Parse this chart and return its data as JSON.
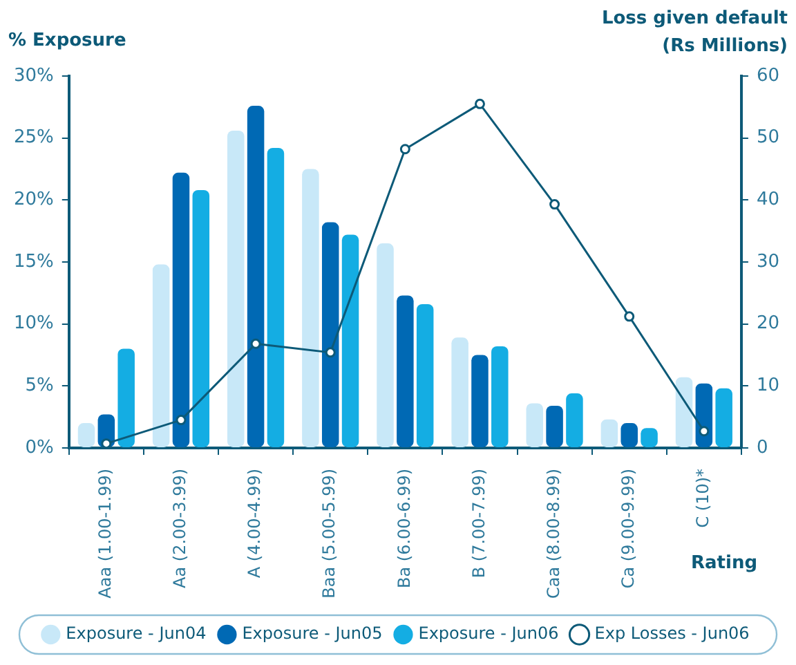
{
  "chart_data": {
    "type": "bar",
    "ylabel": "% Exposure",
    "y2label": "Loss given default (Rs Millions)",
    "xlabel": "Rating",
    "categories": [
      "Aaa (1.00-1.99)",
      "Aa (2.00-3.99)",
      "A (4.00-4.99)",
      "Baa (5.00-5.99)",
      "Ba (6.00-6.99)",
      "B (7.00-7.99)",
      "Caa (8.00-8.99)",
      "Ca (9.00-9.99)",
      "C (10)*"
    ],
    "series": [
      {
        "name": "Exposure - Jun04",
        "color": "#c8e8f8",
        "values": [
          2.0,
          14.8,
          25.6,
          22.5,
          16.5,
          8.9,
          3.6,
          2.3,
          5.7
        ]
      },
      {
        "name": "Exposure - Jun05",
        "color": "#0069b4",
        "values": [
          2.7,
          22.2,
          27.6,
          18.2,
          12.3,
          7.5,
          3.4,
          2.0,
          5.2
        ]
      },
      {
        "name": "Exposure - Jun06",
        "color": "#14ade3",
        "values": [
          8.0,
          20.8,
          24.2,
          17.2,
          11.6,
          8.2,
          4.4,
          1.6,
          4.8
        ]
      },
      {
        "name": "Exp Losses - Jun06",
        "color": "#0d5a78",
        "type": "line",
        "axis": "y2",
        "marker": "circle",
        "line_style": "solid",
        "values": [
          0.7,
          4.5,
          16.8,
          15.4,
          48.2,
          55.5,
          39.3,
          21.2,
          2.7
        ]
      }
    ],
    "ylim": [
      0,
      30
    ],
    "yticks": [
      {
        "value": 0,
        "label": "0%"
      },
      {
        "value": 5,
        "label": "5%"
      },
      {
        "value": 10,
        "label": "10%"
      },
      {
        "value": 15,
        "label": "15%"
      },
      {
        "value": 20,
        "label": "20%"
      },
      {
        "value": 25,
        "label": "25%"
      },
      {
        "value": 30,
        "label": "30%"
      }
    ],
    "y2lim": [
      0,
      60
    ],
    "y2ticks": [
      0,
      10,
      20,
      30,
      40,
      50,
      60
    ],
    "grid": false,
    "legend": "bottom"
  }
}
